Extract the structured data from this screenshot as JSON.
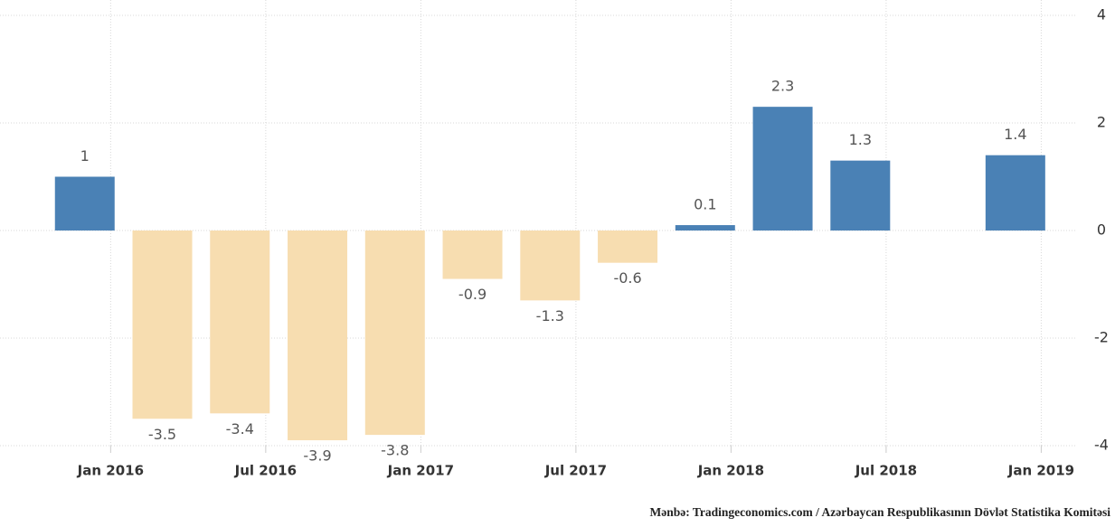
{
  "chart_data": {
    "type": "bar",
    "x": [
      "2015-12",
      "2016-03",
      "2016-06",
      "2016-09",
      "2016-12",
      "2017-03",
      "2017-06",
      "2017-09",
      "2017-12",
      "2018-03",
      "2018-06",
      "2018-12"
    ],
    "values": [
      1,
      -3.5,
      -3.4,
      -3.9,
      -3.8,
      -0.9,
      -1.3,
      -0.6,
      0.1,
      2.3,
      1.3,
      1.4
    ],
    "positive_color": "#4a81b5",
    "negative_color": "#f7ddb0",
    "xlim": [
      "2015-09",
      "2019-02"
    ],
    "xticks": [
      {
        "value": "2016-01",
        "label": "Jan 2016"
      },
      {
        "value": "2016-07",
        "label": "Jul 2016"
      },
      {
        "value": "2017-01",
        "label": "Jan 2017"
      },
      {
        "value": "2017-07",
        "label": "Jul 2017"
      },
      {
        "value": "2018-01",
        "label": "Jan 2018"
      },
      {
        "value": "2018-07",
        "label": "Jul 2018"
      },
      {
        "value": "2019-01",
        "label": "Jan 2019"
      }
    ],
    "ylim": [
      -4,
      4
    ],
    "yticks": [
      -4,
      -2,
      0,
      2,
      4
    ],
    "grid": true,
    "source": "Mənbə: Tradingeconomics.com / Azərbaycan Respublikasının Dövlət Statistika Komitəsi"
  }
}
